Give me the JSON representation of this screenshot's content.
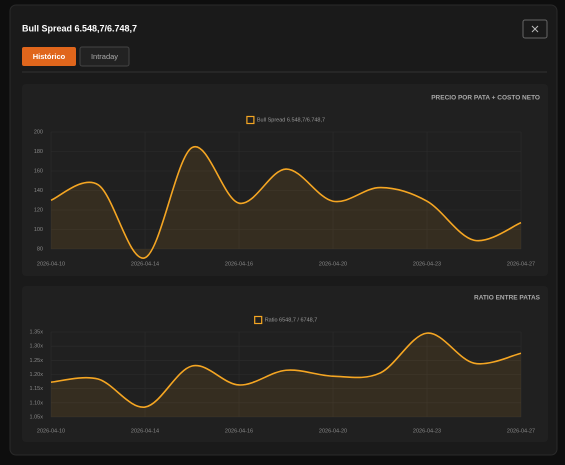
{
  "header": {
    "title": "Bull Spread 6.548,7/6.748,7"
  },
  "tabs": [
    "Histórico",
    "Intraday"
  ],
  "chart_data": [
    {
      "type": "line",
      "title": "PRECIO POR PATA + COSTO NETO",
      "categories": [
        "2026-04-10",
        null,
        "2026-04-14",
        null,
        "2026-04-16",
        null,
        "2026-04-20",
        null,
        "2026-04-23",
        null,
        "2026-04-27"
      ],
      "series": [
        {
          "name": "Bull Spread 6.548,7/6.748,7",
          "color": "#f5a623",
          "values": [
            130,
            146,
            71,
            184,
            127,
            162,
            129,
            143,
            129,
            89,
            107
          ]
        }
      ],
      "ylim": [
        80,
        200
      ],
      "yticks": [
        80,
        100,
        120,
        140,
        160,
        180,
        200
      ],
      "grid": true,
      "legend": "top"
    },
    {
      "type": "line",
      "title": "RATIO ENTRE PATAS",
      "categories": [
        "2026-04-10",
        null,
        "2026-04-14",
        null,
        "2026-04-16",
        null,
        "2026-04-20",
        null,
        "2026-04-23",
        null,
        "2026-04-27"
      ],
      "series": [
        {
          "name": "Ratio 6548,7 / 6748,7",
          "color": "#f5a623",
          "values": [
            1.173,
            1.184,
            1.085,
            1.23,
            1.163,
            1.215,
            1.194,
            1.205,
            1.346,
            1.24,
            1.275
          ]
        }
      ],
      "ylim": [
        1.05,
        1.35
      ],
      "yticks": [
        {
          "value": 1.05,
          "label": "1.05x"
        },
        {
          "value": 1.1,
          "label": "1.10x"
        },
        {
          "value": 1.15,
          "label": "1.15x"
        },
        {
          "value": 1.2,
          "label": "1.20x"
        },
        {
          "value": 1.25,
          "label": "1.25x"
        },
        {
          "value": 1.3,
          "label": "1.30x"
        },
        {
          "value": 1.35,
          "label": "1.35x"
        }
      ],
      "grid": true,
      "legend": "top"
    }
  ]
}
